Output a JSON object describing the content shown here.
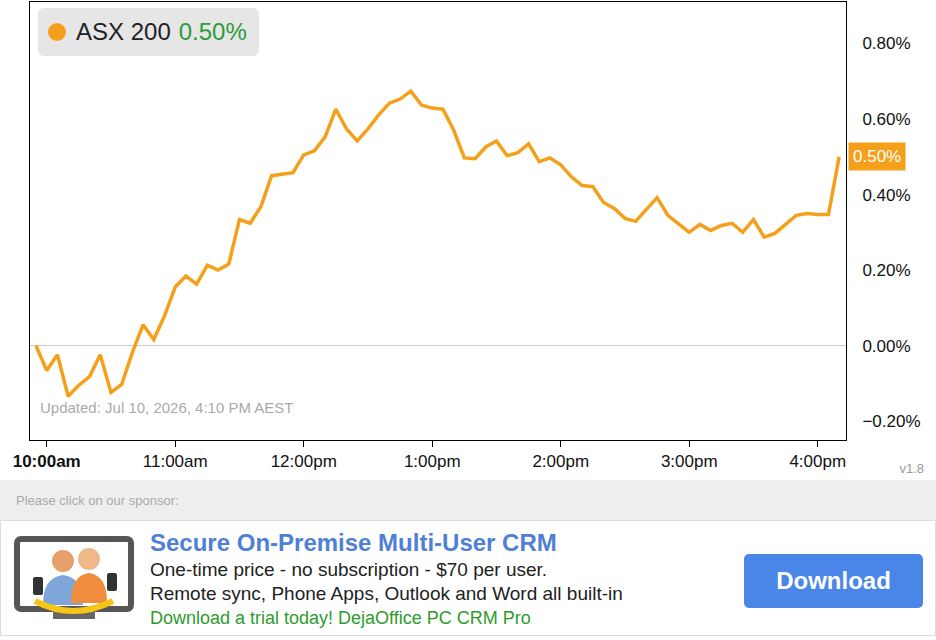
{
  "chart_data": {
    "type": "line",
    "series": [
      {
        "name": "ASX 200",
        "color": "#f5a01a",
        "values": [
          0,
          -0.066,
          -0.024,
          -0.134,
          -0.105,
          -0.082,
          -0.024,
          -0.124,
          -0.103,
          -0.018,
          0.055,
          0.016,
          0.079,
          0.155,
          0.184,
          0.163,
          0.213,
          0.2,
          0.216,
          0.334,
          0.324,
          0.368,
          0.45,
          0.453,
          0.458,
          0.505,
          0.516,
          0.553,
          0.626,
          0.574,
          0.542,
          0.574,
          0.611,
          0.642,
          0.653,
          0.674,
          0.637,
          0.629,
          0.626,
          0.571,
          0.497,
          0.495,
          0.526,
          0.542,
          0.503,
          0.511,
          0.534,
          0.487,
          0.497,
          0.479,
          0.447,
          0.424,
          0.421,
          0.379,
          0.363,
          0.337,
          0.329,
          0.361,
          0.392,
          0.345,
          0.321,
          0.3,
          0.321,
          0.305,
          0.318,
          0.324,
          0.3,
          0.334,
          0.287,
          0.297,
          0.321,
          0.345,
          0.35,
          0.347,
          0.347,
          0.5
        ]
      }
    ],
    "x": [
      9.9167,
      10,
      10.0833,
      10.1667,
      10.25,
      10.3333,
      10.4167,
      10.5,
      10.5833,
      10.6667,
      10.75,
      10.8333,
      10.9167,
      11,
      11.0833,
      11.1667,
      11.25,
      11.3333,
      11.4167,
      11.5,
      11.5833,
      11.6667,
      11.75,
      11.8333,
      11.9167,
      12,
      12.0833,
      12.1667,
      12.25,
      12.3333,
      12.4167,
      12.5,
      12.5833,
      12.6667,
      12.75,
      12.8333,
      12.9167,
      13,
      13.0833,
      13.1667,
      13.25,
      13.3333,
      13.4167,
      13.5,
      13.5833,
      13.6667,
      13.75,
      13.8333,
      13.9167,
      14,
      14.0833,
      14.1667,
      14.25,
      14.3333,
      14.4167,
      14.5,
      14.5833,
      14.6667,
      14.75,
      14.8333,
      14.9167,
      15,
      15.0833,
      15.1667,
      15.25,
      15.3333,
      15.4167,
      15.5,
      15.5833,
      15.6667,
      15.75,
      15.8333,
      15.9167,
      16,
      16.0833,
      16.1667
    ],
    "xlim": [
      9.87,
      16.22
    ],
    "xticks": [
      {
        "value": 10,
        "label": "10:00am"
      },
      {
        "value": 11,
        "label": "11:00am"
      },
      {
        "value": 12,
        "label": "12:00pm"
      },
      {
        "value": 13,
        "label": "1:00pm"
      },
      {
        "value": 14,
        "label": "2:00pm"
      },
      {
        "value": 15,
        "label": "3:00pm"
      },
      {
        "value": 16,
        "label": "4:00pm"
      }
    ],
    "ylim": [
      -0.25,
      0.91
    ],
    "yticks": [
      {
        "value": -0.2,
        "label": "−0.20%"
      },
      {
        "value": 0,
        "label": "0.00%"
      },
      {
        "value": 0.2,
        "label": "0.20%"
      },
      {
        "value": 0.4,
        "label": "0.40%"
      },
      {
        "value": 0.6,
        "label": "0.60%"
      },
      {
        "value": 0.8,
        "label": "0.80%"
      }
    ],
    "grid": false,
    "change_label": "0.50%",
    "end_label": "0.50%",
    "updated": "Updated: Jul 10, 2026, 4:10 PM AEST",
    "version": "v1.8"
  },
  "sponsor": {
    "prompt": "Please click on our sponsor:",
    "title": "Secure On-Premise Multi-User CRM",
    "lines": [
      "One-time price - no subscription - $70 per user.",
      "Remote sync, Phone Apps, Outlook and Word all built-in"
    ],
    "call": "Download a trial today! DejaOffice PC CRM Pro",
    "button": "Download"
  }
}
